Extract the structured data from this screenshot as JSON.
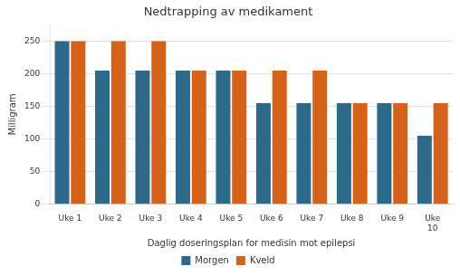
{
  "chart_data": {
    "type": "bar",
    "title": "Nedtrapping av medikament",
    "xlabel": "Daglig doseringsplan for medisin mot epilepsi",
    "ylabel": "Milligram",
    "categories": [
      "Uke 1",
      "Uke 2",
      "Uke 3",
      "Uke 4",
      "Uke 5",
      "Uke 6",
      "Uke 7",
      "Uke 8",
      "Uke 9",
      "Uke\n10"
    ],
    "series": [
      {
        "name": "Morgen",
        "color": "#2D6A8A",
        "values": [
          250,
          205,
          205,
          205,
          205,
          155,
          155,
          155,
          155,
          105
        ]
      },
      {
        "name": "Kveld",
        "color": "#D4621A",
        "values": [
          250,
          250,
          250,
          205,
          205,
          205,
          205,
          155,
          155,
          155
        ]
      }
    ],
    "ylim": [
      0,
      275
    ],
    "yticks": [
      0,
      50,
      100,
      150,
      200,
      250
    ],
    "grid": true,
    "legend": "bottom"
  }
}
